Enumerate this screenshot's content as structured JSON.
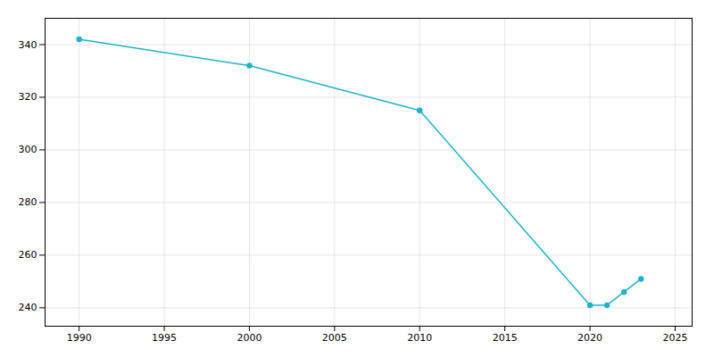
{
  "chart_data": {
    "type": "line",
    "x": [
      1990,
      2000,
      2010,
      2020,
      2021,
      2022,
      2023
    ],
    "values": [
      342,
      332,
      315,
      241,
      241,
      246,
      251
    ],
    "color": "#20b2c8",
    "marker": "circle",
    "xlim": [
      1988,
      2026
    ],
    "ylim": [
      233,
      350
    ],
    "xticks": [
      1990,
      1995,
      2000,
      2005,
      2010,
      2015,
      2020,
      2025
    ],
    "yticks": [
      240,
      260,
      280,
      300,
      320,
      340
    ],
    "grid": true
  }
}
